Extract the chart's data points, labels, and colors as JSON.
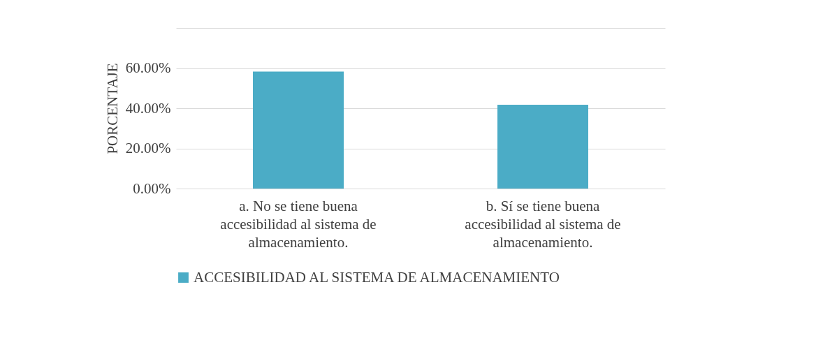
{
  "chart_data": {
    "type": "bar",
    "ylabel": "PORCENTAJE",
    "categories": [
      "a. No se tiene buena accesibilidad al sistema de almacenamiento.",
      "b. Sí se tiene buena accesibilidad al sistema de almacenamiento."
    ],
    "series": [
      {
        "name": "ACCESIBILIDAD AL SISTEMA DE ALMACENAMIENTO",
        "color": "#4bacc6",
        "values": [
          58.3,
          41.7
        ]
      }
    ],
    "ylim": [
      0,
      80
    ],
    "yticks": [
      {
        "value": 0,
        "label": "0.00%"
      },
      {
        "value": 20,
        "label": "20.00%"
      },
      {
        "value": 40,
        "label": "40.00%"
      },
      {
        "value": 60,
        "label": "60.00%"
      },
      {
        "value": 80,
        "label": null
      }
    ],
    "grid": true,
    "legend": "bottom"
  }
}
